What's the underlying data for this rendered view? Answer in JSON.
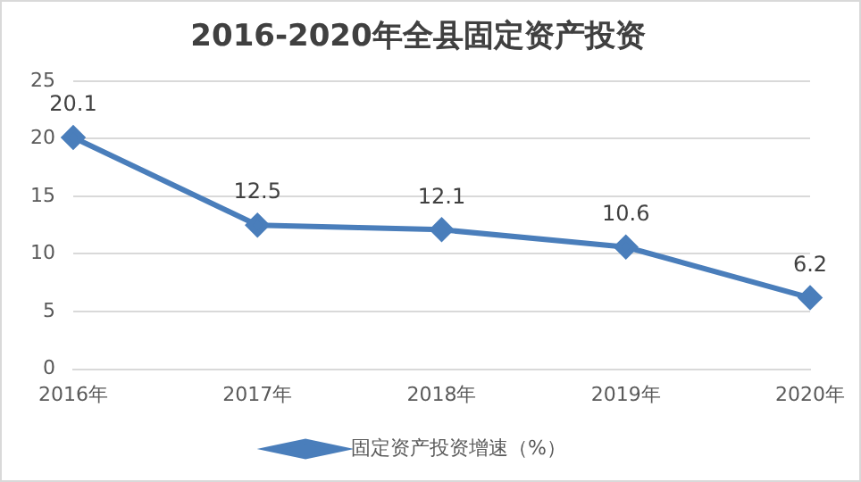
{
  "chart_data": {
    "type": "line",
    "title": "2016-2020年全县固定资产投资",
    "categories": [
      "2016年",
      "2017年",
      "2018年",
      "2019年",
      "2020年"
    ],
    "series": [
      {
        "name": "固定资产投资增速（%）",
        "color": "#4a7ebb",
        "values": [
          20.1,
          12.5,
          12.1,
          10.6,
          6.2
        ]
      }
    ],
    "ylim": [
      0,
      25
    ],
    "yticks": [
      0,
      5,
      10,
      15,
      20,
      25
    ],
    "grid": "y",
    "legend": "bottom",
    "marker": "diamond",
    "line_style": "solid",
    "data_labels": true
  }
}
